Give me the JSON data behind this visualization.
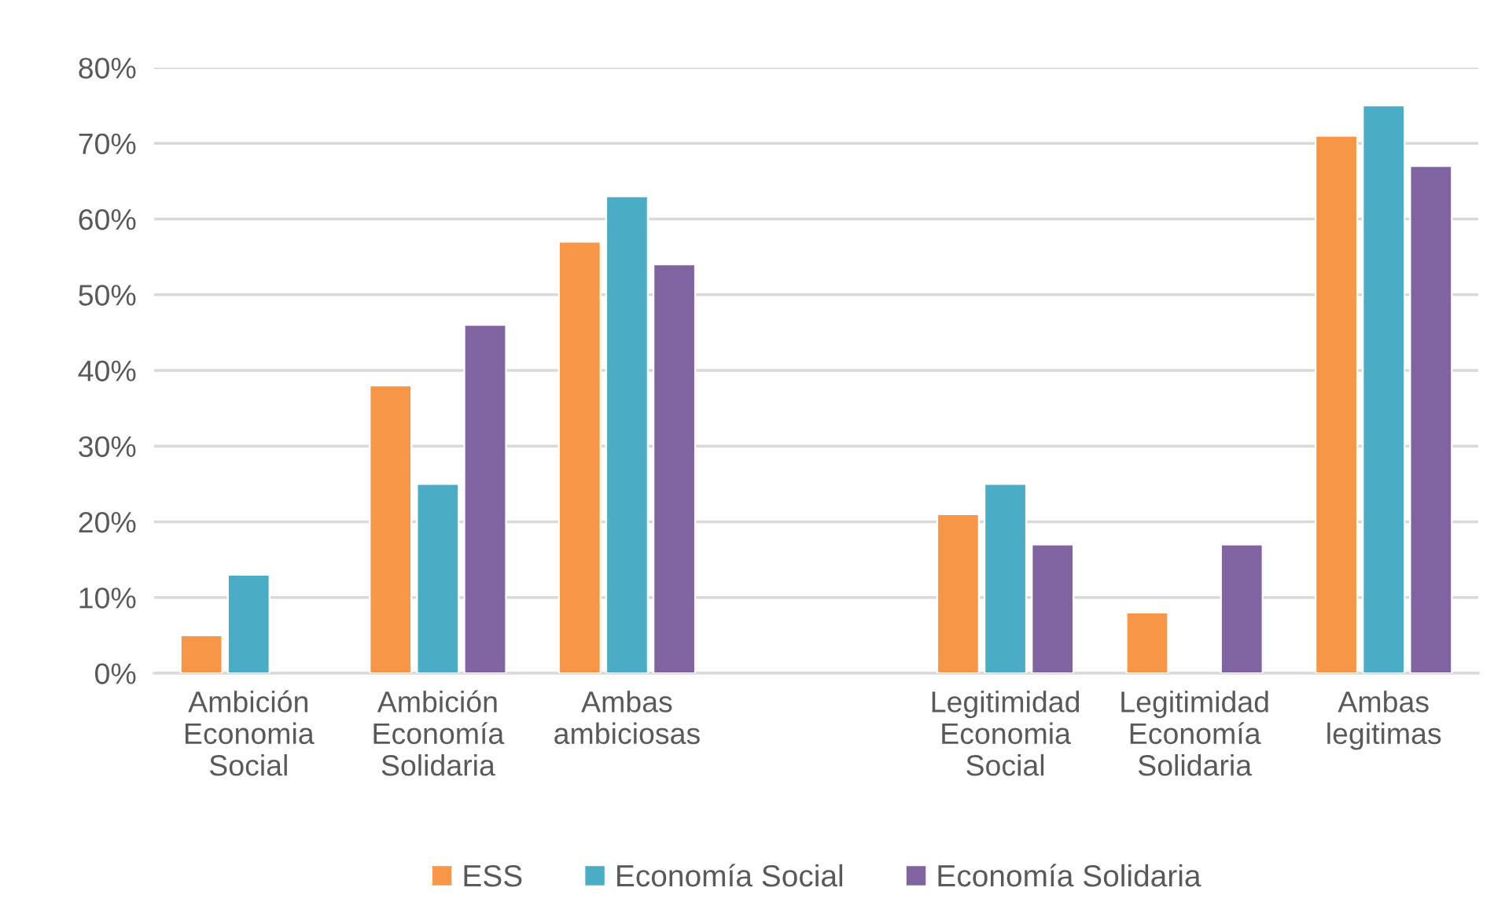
{
  "chart_data": {
    "type": "bar",
    "categories": [
      "Ambición\nEconomia\nSocial",
      "Ambición\nEconomía\nSolidaria",
      "Ambas\nambiciosas",
      null,
      "Legitimidad\nEconomia\nSocial",
      "Legitimidad\nEconomía\nSolidaria",
      "Ambas\nlegitimas"
    ],
    "series": [
      {
        "name": "ESS",
        "color": "#f79646",
        "values": [
          5,
          38,
          57,
          null,
          21,
          8,
          71
        ]
      },
      {
        "name": "Economía Social",
        "color": "#4bacc6",
        "values": [
          13,
          25,
          63,
          null,
          25,
          null,
          75
        ]
      },
      {
        "name": "Economía Solidaria",
        "color": "#8064a2",
        "values": [
          null,
          46,
          54,
          null,
          17,
          17,
          67
        ]
      }
    ],
    "ylim": [
      0,
      80
    ],
    "yticks": [
      {
        "value": 0,
        "label": "0%"
      },
      {
        "value": 10,
        "label": "10%"
      },
      {
        "value": 20,
        "label": "20%"
      },
      {
        "value": 30,
        "label": "30%"
      },
      {
        "value": 40,
        "label": "40%"
      },
      {
        "value": 50,
        "label": "50%"
      },
      {
        "value": 60,
        "label": "60%"
      },
      {
        "value": 70,
        "label": "70%"
      },
      {
        "value": 80,
        "label": "80%"
      }
    ],
    "grid": "y",
    "legend": "bottom"
  }
}
